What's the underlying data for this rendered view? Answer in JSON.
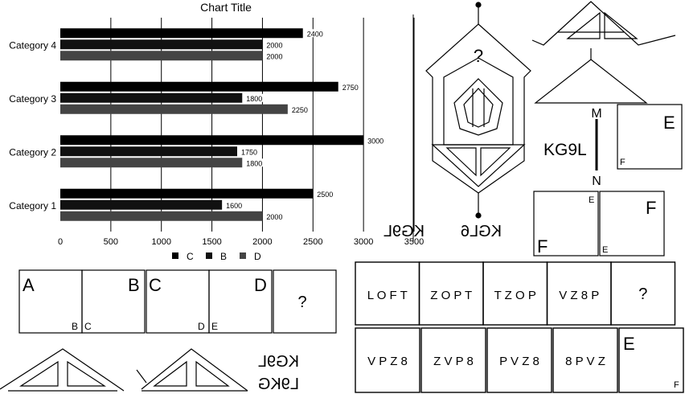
{
  "chart_data": {
    "type": "bar",
    "orientation": "horizontal",
    "title": "Chart Title",
    "categories": [
      "Category 1",
      "Category 2",
      "Category 3",
      "Category 4"
    ],
    "series": [
      {
        "name": "C",
        "values": [
          2500,
          3000,
          2750,
          2400
        ],
        "color": "#000000"
      },
      {
        "name": "B",
        "values": [
          1600,
          1750,
          1800,
          2000
        ],
        "color": "#111111"
      },
      {
        "name": "D",
        "values": [
          2000,
          1800,
          2250,
          2000
        ],
        "color": "#444444"
      }
    ],
    "xticks": [
      "0",
      "500",
      "1000",
      "1500",
      "2000",
      "2500",
      "3000",
      "3500"
    ],
    "xlim": [
      0,
      3500
    ],
    "grid": true,
    "legend_position": "bottom"
  },
  "puzzle_top_right": {
    "question": "?",
    "mirrored_text": [
      "KG9L",
      "KGL6"
    ],
    "label_m": "M",
    "label_n": "N",
    "kg9l": "KG9L",
    "box_big_e": "E",
    "box_small_f": "F",
    "pair_left_big": "F",
    "pair_left_small": "E",
    "pair_right_big": "F",
    "pair_right_small": "E"
  },
  "letter_strip": {
    "cells": [
      {
        "big": "A",
        "small": "B"
      },
      {
        "big": "B",
        "small": "C"
      },
      {
        "big": "C",
        "small": "D"
      },
      {
        "big": "D",
        "small": "E"
      }
    ],
    "question": "?"
  },
  "bottom_left": {
    "mirrored_text": [
      "KG9L",
      "L9KG"
    ]
  },
  "sequence": {
    "row1": [
      "L O F T",
      "Z O P T",
      "T Z O P",
      "V Z 8 P",
      "?"
    ],
    "row2": [
      "V P Z 8",
      "Z V P 8",
      "P V Z 8",
      "8 P V Z"
    ],
    "last_big": "E",
    "last_small": "F"
  }
}
